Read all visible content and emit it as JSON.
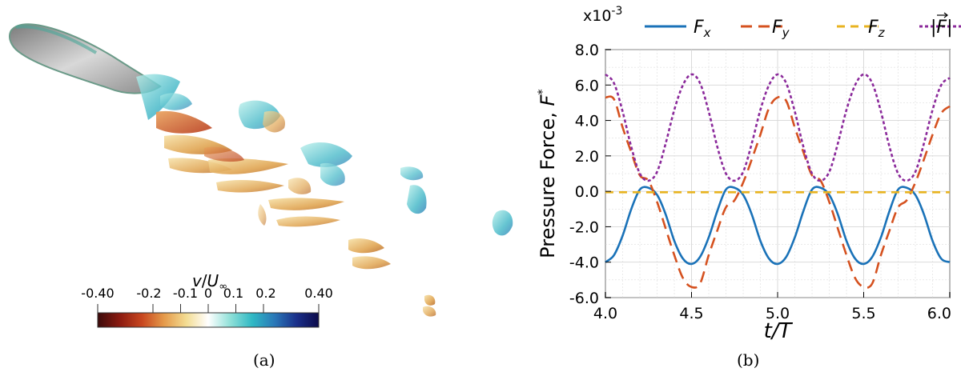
{
  "panel_a": {
    "caption": "(a)",
    "colorbar": {
      "label_var": "v",
      "label_sep": "/",
      "label_ref": "U",
      "label_sub": "∞",
      "ticks": [
        "-0.40",
        "-0.2",
        "-0.1",
        "0",
        "0.1",
        "0.2",
        "0.40"
      ],
      "tick_values": [
        -0.4,
        -0.2,
        -0.1,
        0,
        0.1,
        0.2,
        0.4
      ],
      "range": [
        -0.4,
        0.4
      ],
      "colors": [
        "#3b0a0a",
        "#8b1a10",
        "#c8461f",
        "#e59a4a",
        "#f3dc92",
        "#ffffff",
        "#8fe0d8",
        "#2fb8c4",
        "#2a78b8",
        "#1a2f8a",
        "#0c0a4a"
      ]
    }
  },
  "panel_b": {
    "caption": "(b)",
    "chart_data": {
      "type": "line",
      "xlabel": "t/T",
      "ylabel": "Pressure Force, F*",
      "ylabel_text": "Pressure Force, ",
      "ylabel_symbol": "F",
      "ylabel_sup": "*",
      "y_multiplier_base": "x10",
      "y_multiplier_exp": "-3",
      "xlim": [
        4.0,
        6.0
      ],
      "ylim": [
        -6.0,
        8.0
      ],
      "xticks": [
        "4.0",
        "4.5",
        "5.0",
        "5.5",
        "6.0"
      ],
      "xtick_values": [
        4.0,
        4.5,
        5.0,
        5.5,
        6.0
      ],
      "yticks": [
        "8.0",
        "6.0",
        "4.0",
        "2.0",
        "0.0",
        "-2.0",
        "-4.0",
        "-6.0"
      ],
      "ytick_values": [
        8,
        6,
        4,
        2,
        0,
        -2,
        -4,
        -6
      ],
      "grid": true,
      "legend_position": "top",
      "series": [
        {
          "name": "Fx",
          "sym": "F",
          "sub": "x",
          "color": "#1a72b8",
          "dash": "solid",
          "x": [
            4.0,
            4.05,
            4.1,
            4.15,
            4.2,
            4.25,
            4.3,
            4.35,
            4.4,
            4.45,
            4.5,
            4.55,
            4.6,
            4.65,
            4.7,
            4.75,
            4.8,
            4.85,
            4.9,
            4.95,
            5.0,
            5.05,
            5.1,
            5.15,
            5.2,
            5.25,
            5.3,
            5.35,
            5.4,
            5.45,
            5.5,
            5.55,
            5.6,
            5.65,
            5.7,
            5.75,
            5.8,
            5.85,
            5.9,
            5.95,
            6.0
          ],
          "y": [
            -4.0,
            -3.6,
            -2.5,
            -1.0,
            0.1,
            0.2,
            -0.2,
            -1.3,
            -2.8,
            -3.8,
            -4.1,
            -3.7,
            -2.6,
            -1.1,
            0.1,
            0.2,
            -0.2,
            -1.3,
            -2.8,
            -3.8,
            -4.1,
            -3.7,
            -2.6,
            -1.1,
            0.1,
            0.2,
            -0.2,
            -1.3,
            -2.8,
            -3.8,
            -4.1,
            -3.7,
            -2.6,
            -1.1,
            0.1,
            0.2,
            -0.2,
            -1.3,
            -2.8,
            -3.8,
            -4.0
          ]
        },
        {
          "name": "Fy",
          "sym": "F",
          "sub": "y",
          "color": "#d5511f",
          "dash": "longdash",
          "x": [
            4.0,
            4.05,
            4.1,
            4.15,
            4.2,
            4.25,
            4.3,
            4.35,
            4.4,
            4.45,
            4.5,
            4.55,
            4.6,
            4.65,
            4.7,
            4.75,
            4.8,
            4.85,
            4.9,
            4.95,
            5.0,
            5.05,
            5.1,
            5.15,
            5.2,
            5.25,
            5.3,
            5.35,
            5.4,
            5.45,
            5.5,
            5.55,
            5.6,
            5.65,
            5.7,
            5.75,
            5.8,
            5.85,
            5.9,
            5.95,
            6.0
          ],
          "y": [
            5.3,
            5.2,
            3.6,
            2.2,
            0.9,
            0.6,
            -0.6,
            -2.1,
            -3.6,
            -4.9,
            -5.4,
            -5.2,
            -3.6,
            -2.2,
            -0.9,
            -0.5,
            0.5,
            1.8,
            3.2,
            4.7,
            5.3,
            5.1,
            3.6,
            2.2,
            0.9,
            0.6,
            -0.6,
            -2.1,
            -3.6,
            -4.9,
            -5.4,
            -5.2,
            -3.6,
            -2.2,
            -0.9,
            -0.5,
            0.5,
            1.8,
            3.2,
            4.4,
            4.8
          ]
        },
        {
          "name": "Fz",
          "sym": "F",
          "sub": "z",
          "color": "#e8b320",
          "dash": "dash",
          "x": [
            4.0,
            4.5,
            5.0,
            5.5,
            6.0
          ],
          "y": [
            -0.05,
            -0.05,
            -0.05,
            -0.05,
            -0.05
          ]
        },
        {
          "name": "|F|",
          "sym": "F",
          "sub": "",
          "color": "#8b2a9b",
          "dash": "shortdash",
          "x": [
            4.0,
            4.05,
            4.1,
            4.15,
            4.2,
            4.25,
            4.3,
            4.35,
            4.4,
            4.45,
            4.5,
            4.55,
            4.6,
            4.65,
            4.7,
            4.75,
            4.8,
            4.85,
            4.9,
            4.95,
            5.0,
            5.05,
            5.1,
            5.15,
            5.2,
            5.25,
            5.3,
            5.35,
            5.4,
            5.45,
            5.5,
            5.55,
            5.6,
            5.65,
            5.7,
            5.75,
            5.8,
            5.85,
            5.9,
            5.95,
            6.0
          ],
          "y": [
            6.6,
            6.1,
            4.5,
            2.5,
            1.0,
            0.6,
            1.1,
            2.7,
            4.6,
            6.0,
            6.6,
            6.1,
            4.5,
            2.5,
            1.0,
            0.6,
            1.1,
            2.7,
            4.6,
            6.0,
            6.6,
            6.1,
            4.5,
            2.5,
            1.0,
            0.6,
            1.1,
            2.7,
            4.6,
            6.0,
            6.6,
            6.1,
            4.5,
            2.5,
            1.0,
            0.6,
            1.1,
            2.7,
            4.6,
            6.0,
            6.4
          ]
        }
      ]
    }
  }
}
